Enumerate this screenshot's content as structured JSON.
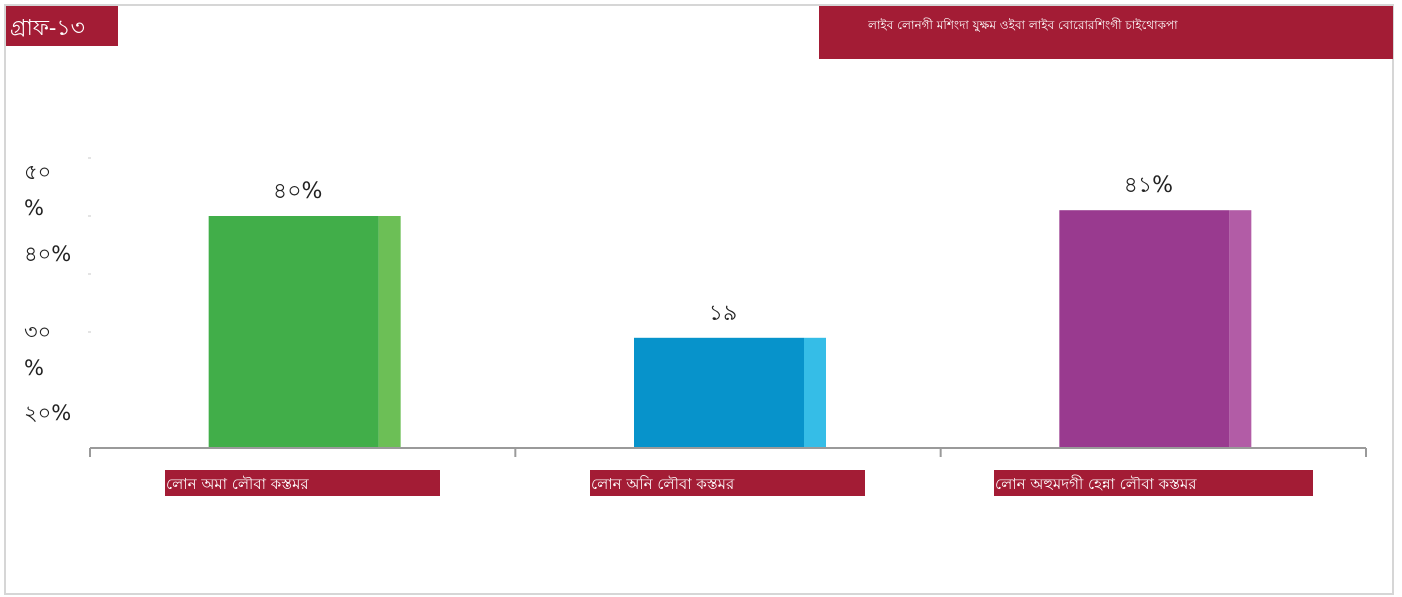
{
  "header": {
    "graph_tag": "গ্রাফ-১৩",
    "title": "লাইব লোনগী মশিংদা যুক্ষম ওইবা লাইব বোরোরশিংগী চাইথোকপা"
  },
  "colors": {
    "brand": "#a31c35",
    "axis": "#9a9a9a",
    "text": "#222222",
    "white": "#ffffff"
  },
  "chart_data": {
    "type": "bar",
    "title": "",
    "xlabel": "",
    "ylabel": "",
    "categories": [
      "লোন অমা লৌবা কস্তমর",
      "লোন অনি লৌবা কস্তমর",
      "লোন অহুমদগী হেন্না লৌবা কস্তমর"
    ],
    "values": [
      40,
      19,
      41
    ],
    "value_labels": [
      "৪০%",
      "১৯",
      "৪১%"
    ],
    "bar_colors": [
      {
        "main": "#41ae49",
        "side": "#6cbf56"
      },
      {
        "main": "#0793cb",
        "side": "#35bde7"
      },
      {
        "main": "#993a8f",
        "side": "#b25ca6"
      }
    ],
    "yticks": [
      {
        "value": 20,
        "label": "২০%"
      },
      {
        "value": 30,
        "label": "৩০%"
      },
      {
        "value": 40,
        "label": "৪০%"
      },
      {
        "value": 50,
        "label": "৫০%"
      }
    ],
    "ylim": [
      0,
      50
    ],
    "grid": false,
    "legend": "none"
  }
}
